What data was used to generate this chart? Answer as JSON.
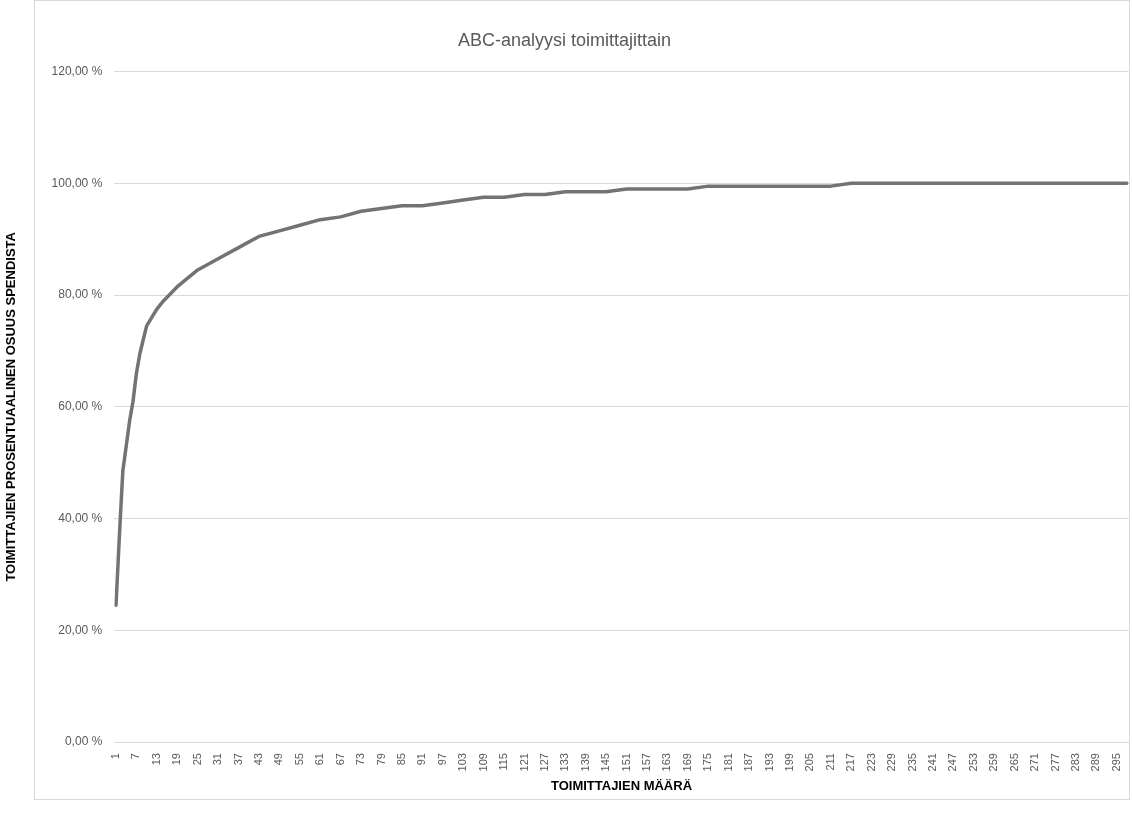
{
  "chart_data": {
    "type": "line",
    "title": "ABC-analyysi toimittajittain",
    "xlabel": "TOIMITTAJIEN MÄÄRÄ",
    "ylabel": "TOIMITTAJIEN PROSENTUAALINEN OSUUS SPENDISTA",
    "x": [
      1,
      2,
      3,
      4,
      5,
      6,
      7,
      8,
      9,
      10,
      12,
      13,
      15,
      19,
      25,
      31,
      37,
      43,
      49,
      55,
      61,
      67,
      73,
      79,
      85,
      91,
      97,
      103,
      109,
      115,
      121,
      127,
      133,
      139,
      145,
      151,
      157,
      163,
      169,
      175,
      187,
      199,
      211,
      217,
      235,
      253,
      265,
      298
    ],
    "series": [
      {
        "color": "#737373",
        "values": [
          24.5,
          37,
          48.5,
          53,
          57.5,
          61,
          66,
          69.5,
          72,
          74.5,
          76.5,
          77.5,
          79,
          81.5,
          84.5,
          86.5,
          88.5,
          90.5,
          91.5,
          92.5,
          93.5,
          94,
          95,
          95.5,
          96,
          96,
          96.5,
          97,
          97.5,
          97.5,
          98,
          98,
          98.5,
          98.5,
          98.5,
          99,
          99,
          99,
          99,
          99.5,
          99.5,
          99.5,
          99.5,
          100,
          100,
          100,
          100,
          100
        ]
      }
    ],
    "xlim": [
      0.5,
      298.5
    ],
    "xticks": [
      1,
      7,
      13,
      19,
      25,
      31,
      37,
      43,
      49,
      55,
      61,
      67,
      73,
      79,
      85,
      91,
      97,
      103,
      109,
      115,
      121,
      127,
      133,
      139,
      145,
      151,
      157,
      163,
      169,
      175,
      181,
      187,
      193,
      199,
      205,
      211,
      217,
      223,
      229,
      235,
      241,
      247,
      253,
      259,
      265,
      271,
      277,
      283,
      289,
      295
    ],
    "ylim": [
      0,
      120
    ],
    "yticks": [
      {
        "value": 0,
        "label": "0,00 %"
      },
      {
        "value": 20,
        "label": "20,00 %"
      },
      {
        "value": 40,
        "label": "40,00 %"
      },
      {
        "value": 60,
        "label": "60,00 %"
      },
      {
        "value": 80,
        "label": "80,00 %"
      },
      {
        "value": 100,
        "label": "100,00 %"
      },
      {
        "value": 120,
        "label": "120,00 %"
      }
    ],
    "grid": "y",
    "legend": false,
    "marker": "none",
    "line_style": "solid"
  }
}
